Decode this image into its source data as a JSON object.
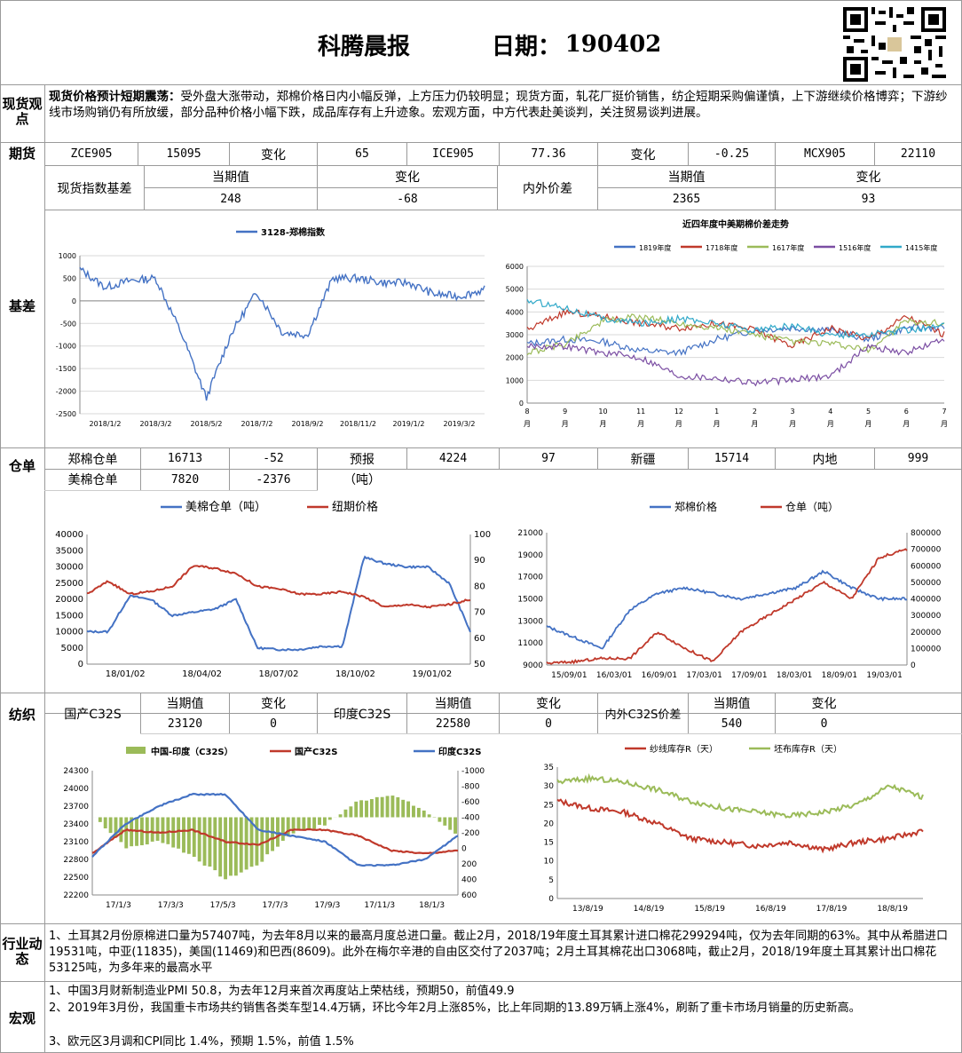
{
  "header": {
    "title": "科腾晨报",
    "date_label": "日期：",
    "date": "190402"
  },
  "sections": {
    "spot": "现货观点",
    "futures": "期货",
    "basis": "基差",
    "warehouse": "仓单",
    "spinning": "纺织",
    "industry": "行业动态",
    "macro": "宏观"
  },
  "spot_view": {
    "headline": "现货价格预计短期震荡：",
    "text": "受外盘大涨带动，郑棉价格日内小幅反弹，上方压力仍较明显；现货方面，轧花厂挺价销售，纺企短期采购偏谨慎，上下游继续价格博弈；下游纱线市场购销仍有所放缓，部分品种价格小幅下跌，成品库存有上升迹象。宏观方面，中方代表赴美谈判，关注贸易谈判进展。"
  },
  "futures": {
    "c1": "ZCE905",
    "c2": "15095",
    "c3": "变化",
    "c4": "65",
    "c5": "ICE905",
    "c6": "77.36",
    "c7": "变化",
    "c8": "-0.25",
    "c9": "MCX905",
    "c10": "22110"
  },
  "basis": {
    "label1": "现货指数基差",
    "h1": "当期值",
    "h2": "变化",
    "v1": "248",
    "v2": "-68",
    "label2": "内外价差",
    "h3": "当期值",
    "h4": "变化",
    "v3": "2365",
    "v4": "93"
  },
  "warehouse": {
    "r1": [
      "郑棉仓单",
      "16713",
      "-52",
      "预报",
      "4224",
      "97",
      "新疆",
      "15714",
      "内地",
      "999"
    ],
    "r2": [
      "美棉仓单",
      "7820",
      "-2376",
      "（吨）"
    ]
  },
  "spinning": {
    "label1": "国产C32S",
    "h1": "当期值",
    "h2": "变化",
    "v1": "23120",
    "v2": "0",
    "label2": "印度C32S",
    "h3": "当期值",
    "h4": "变化",
    "v3": "22580",
    "v4": "0",
    "label3": "内外C32S价差",
    "h5": "当期值",
    "h6": "变化",
    "v5": "540",
    "v6": "0"
  },
  "industry": {
    "text": "1、土耳其2月份原棉进口量为57407吨，为去年8月以来的最高月度总进口量。截止2月，2018/19年度土耳其累计进口棉花299294吨，仅为去年同期的63%。其中从希腊进口19531吨，中亚(11835)，美国(11469)和巴西(8609)。此外在梅尔辛港的自由区交付了2037吨；2月土耳其棉花出口3068吨，截止2月，2018/19年度土耳其累计出口棉花53125吨，为多年来的最高水平"
  },
  "macro": {
    "l1": "1、中国3月财新制造业PMI 50.8，为去年12月来首次再度站上荣枯线，预期50，前值49.9",
    "l2": "2、2019年3月份，我国重卡市场共约销售各类车型14.4万辆，环比今年2月上涨85%，比上年同期的13.89万辆上涨4%，刷新了重卡市场月销量的历史新高。",
    "l3": "3、欧元区3月调和CPI同比 1.4%，预期 1.5%，前值 1.5%"
  },
  "chart_data": [
    {
      "type": "line",
      "title": "",
      "series": [
        {
          "name": "3128-郑棉指数",
          "color": "#4472c4",
          "x": [
            "2018/1/2",
            "2018/2/1",
            "2018/3/2",
            "2018/4/2",
            "2018/5/2",
            "2018/5/20",
            "2018/6/2",
            "2018/7/2",
            "2018/8/2",
            "2018/9/2",
            "2018/10/2",
            "2018/11/2",
            "2018/12/2",
            "2019/1/2",
            "2019/2/2",
            "2019/3/2",
            "2019/4/2"
          ],
          "values": [
            700,
            300,
            450,
            500,
            -700,
            -2150,
            -700,
            200,
            -700,
            -750,
            500,
            500,
            400,
            400,
            150,
            100,
            250
          ]
        }
      ],
      "x_ticks": [
        "2018/1/2",
        "2018/3/2",
        "2018/5/2",
        "2018/7/2",
        "2018/9/2",
        "2018/11/2",
        "2019/1/2",
        "2019/3/2"
      ],
      "y_ticks": [
        "1000",
        "500",
        "0",
        "-500",
        "-1000",
        "-1500",
        "-2000",
        "-2500"
      ],
      "ylim": [
        -2500,
        1000
      ]
    },
    {
      "type": "line",
      "title": "近四年度中美期棉价差走势",
      "x_ticks": [
        "8月",
        "9月",
        "10月",
        "11月",
        "12月",
        "1月",
        "2月",
        "3月",
        "4月",
        "5月",
        "6月",
        "7月"
      ],
      "y_ticks": [
        "6000",
        "5000",
        "4000",
        "3000",
        "2000",
        "1000",
        "0"
      ],
      "ylim": [
        0,
        6000
      ],
      "series": [
        {
          "name": "1819年度",
          "color": "#4472c4",
          "values": [
            2600,
            2800,
            2700,
            2300,
            2200,
            2800,
            3200,
            3300,
            3200,
            2800,
            3300,
            3300
          ]
        },
        {
          "name": "1718年度",
          "color": "#c0392b",
          "values": [
            3200,
            4000,
            3800,
            3500,
            3300,
            3500,
            3200,
            2500,
            3300,
            2800,
            3800,
            3000
          ]
        },
        {
          "name": "1617年度",
          "color": "#9bbb59",
          "values": [
            2200,
            2600,
            3600,
            3800,
            3500,
            3300,
            3000,
            2700,
            2600,
            2300,
            3600,
            3500
          ]
        },
        {
          "name": "1516年度",
          "color": "#7b4ea3",
          "values": [
            2500,
            2500,
            2200,
            2000,
            1200,
            1100,
            900,
            1000,
            1200,
            2500,
            2200,
            2800
          ]
        },
        {
          "name": "1415年度",
          "color": "#31a9c9",
          "values": [
            4500,
            4200,
            3700,
            3500,
            3700,
            3500,
            3200,
            3400,
            3000,
            3000,
            3200,
            3400
          ]
        }
      ]
    },
    {
      "type": "line",
      "title": "",
      "x_ticks": [
        "18/01/02",
        "18/04/02",
        "18/07/02",
        "18/10/02",
        "19/01/02"
      ],
      "y_ticks": [
        "40000",
        "35000",
        "30000",
        "25000",
        "20000",
        "15000",
        "10000",
        "5000",
        "0"
      ],
      "y2_ticks": [
        "100",
        "90",
        "80",
        "70",
        "60",
        "50"
      ],
      "ylim": [
        0,
        40000
      ],
      "y2lim": [
        50,
        100
      ],
      "series": [
        {
          "name": "美棉仓单（吨）",
          "color": "#4472c4",
          "axis": "left",
          "values": [
            10000,
            10000,
            21000,
            20000,
            15000,
            16000,
            17000,
            20000,
            5000,
            4500,
            4500,
            5500,
            5500,
            33000,
            31000,
            30000,
            30000,
            25000,
            10000
          ]
        },
        {
          "name": "纽期价格",
          "color": "#c0392b",
          "axis": "right",
          "values": [
            77,
            82,
            77,
            78,
            80,
            88,
            87,
            85,
            80,
            79,
            77,
            77,
            78,
            76,
            72,
            73,
            72,
            73,
            75
          ]
        }
      ]
    },
    {
      "type": "line",
      "title": "",
      "x_ticks": [
        "15/09/01",
        "16/03/01",
        "16/09/01",
        "17/03/01",
        "17/09/01",
        "18/03/01",
        "18/09/01",
        "19/03/01"
      ],
      "y_ticks": [
        "21000",
        "19000",
        "17000",
        "15000",
        "13000",
        "11000",
        "9000"
      ],
      "y2_ticks": [
        "800000",
        "700000",
        "600000",
        "500000",
        "400000",
        "300000",
        "200000",
        "100000",
        "0"
      ],
      "ylim": [
        9000,
        21000
      ],
      "y2lim": [
        0,
        800000
      ],
      "series": [
        {
          "name": "郑棉价格",
          "color": "#4472c4",
          "axis": "left",
          "values": [
            12500,
            11500,
            10500,
            14000,
            15500,
            16000,
            15500,
            15000,
            15500,
            16000,
            17500,
            16000,
            15000,
            15000
          ]
        },
        {
          "name": "仓单（吨）",
          "color": "#c0392b",
          "axis": "right",
          "values": [
            10000,
            20000,
            40000,
            40000,
            200000,
            100000,
            20000,
            200000,
            300000,
            400000,
            500000,
            400000,
            650000,
            700000
          ]
        }
      ]
    },
    {
      "type": "bar",
      "title": "",
      "x_ticks": [
        "17/1/3",
        "17/3/3",
        "17/5/3",
        "17/7/3",
        "17/9/3",
        "17/11/3",
        "18/1/3"
      ],
      "y_ticks": [
        "24300",
        "24000",
        "23700",
        "23400",
        "23100",
        "22800",
        "22500",
        "22200"
      ],
      "y2_ticks": [
        "-1000",
        "-800",
        "-600",
        "-400",
        "-200",
        "0",
        "200",
        "400",
        "600"
      ],
      "ylim": [
        22200,
        24300
      ],
      "y2lim": [
        -1000,
        600
      ],
      "series": [
        {
          "name": "中国-印度（C32S）",
          "color": "#9bbb59",
          "axis": "right",
          "values": [
            0,
            -400,
            -300,
            -500,
            -800,
            -600,
            -200,
            -100,
            200,
            300,
            100,
            -200
          ]
        },
        {
          "name": "国产C32S",
          "color": "#c0392b",
          "axis": "left",
          "values": [
            22900,
            23300,
            23250,
            23300,
            23100,
            23050,
            23300,
            23300,
            23200,
            22950,
            22900,
            22950
          ]
        },
        {
          "name": "印度C32S",
          "color": "#4472c4",
          "axis": "left",
          "values": [
            22850,
            23400,
            23700,
            23900,
            23900,
            23300,
            23200,
            23100,
            22700,
            22700,
            22800,
            23200
          ]
        }
      ]
    },
    {
      "type": "line",
      "title": "",
      "x_ticks": [
        "13/8/19",
        "14/8/19",
        "15/8/19",
        "16/8/19",
        "17/8/19",
        "18/8/19"
      ],
      "y_ticks": [
        "35",
        "30",
        "25",
        "20",
        "15",
        "10",
        "5",
        "0"
      ],
      "ylim": [
        0,
        35
      ],
      "series": [
        {
          "name": "纱线库存R（天）",
          "color": "#c0392b",
          "values": [
            26,
            24,
            23,
            20,
            16,
            15,
            14,
            15,
            13,
            15,
            16,
            18
          ]
        },
        {
          "name": "坯布库存R（天）",
          "color": "#9bbb59",
          "values": [
            31,
            32,
            31,
            29,
            26,
            24,
            23,
            22,
            23,
            25,
            30,
            27
          ]
        }
      ]
    }
  ]
}
